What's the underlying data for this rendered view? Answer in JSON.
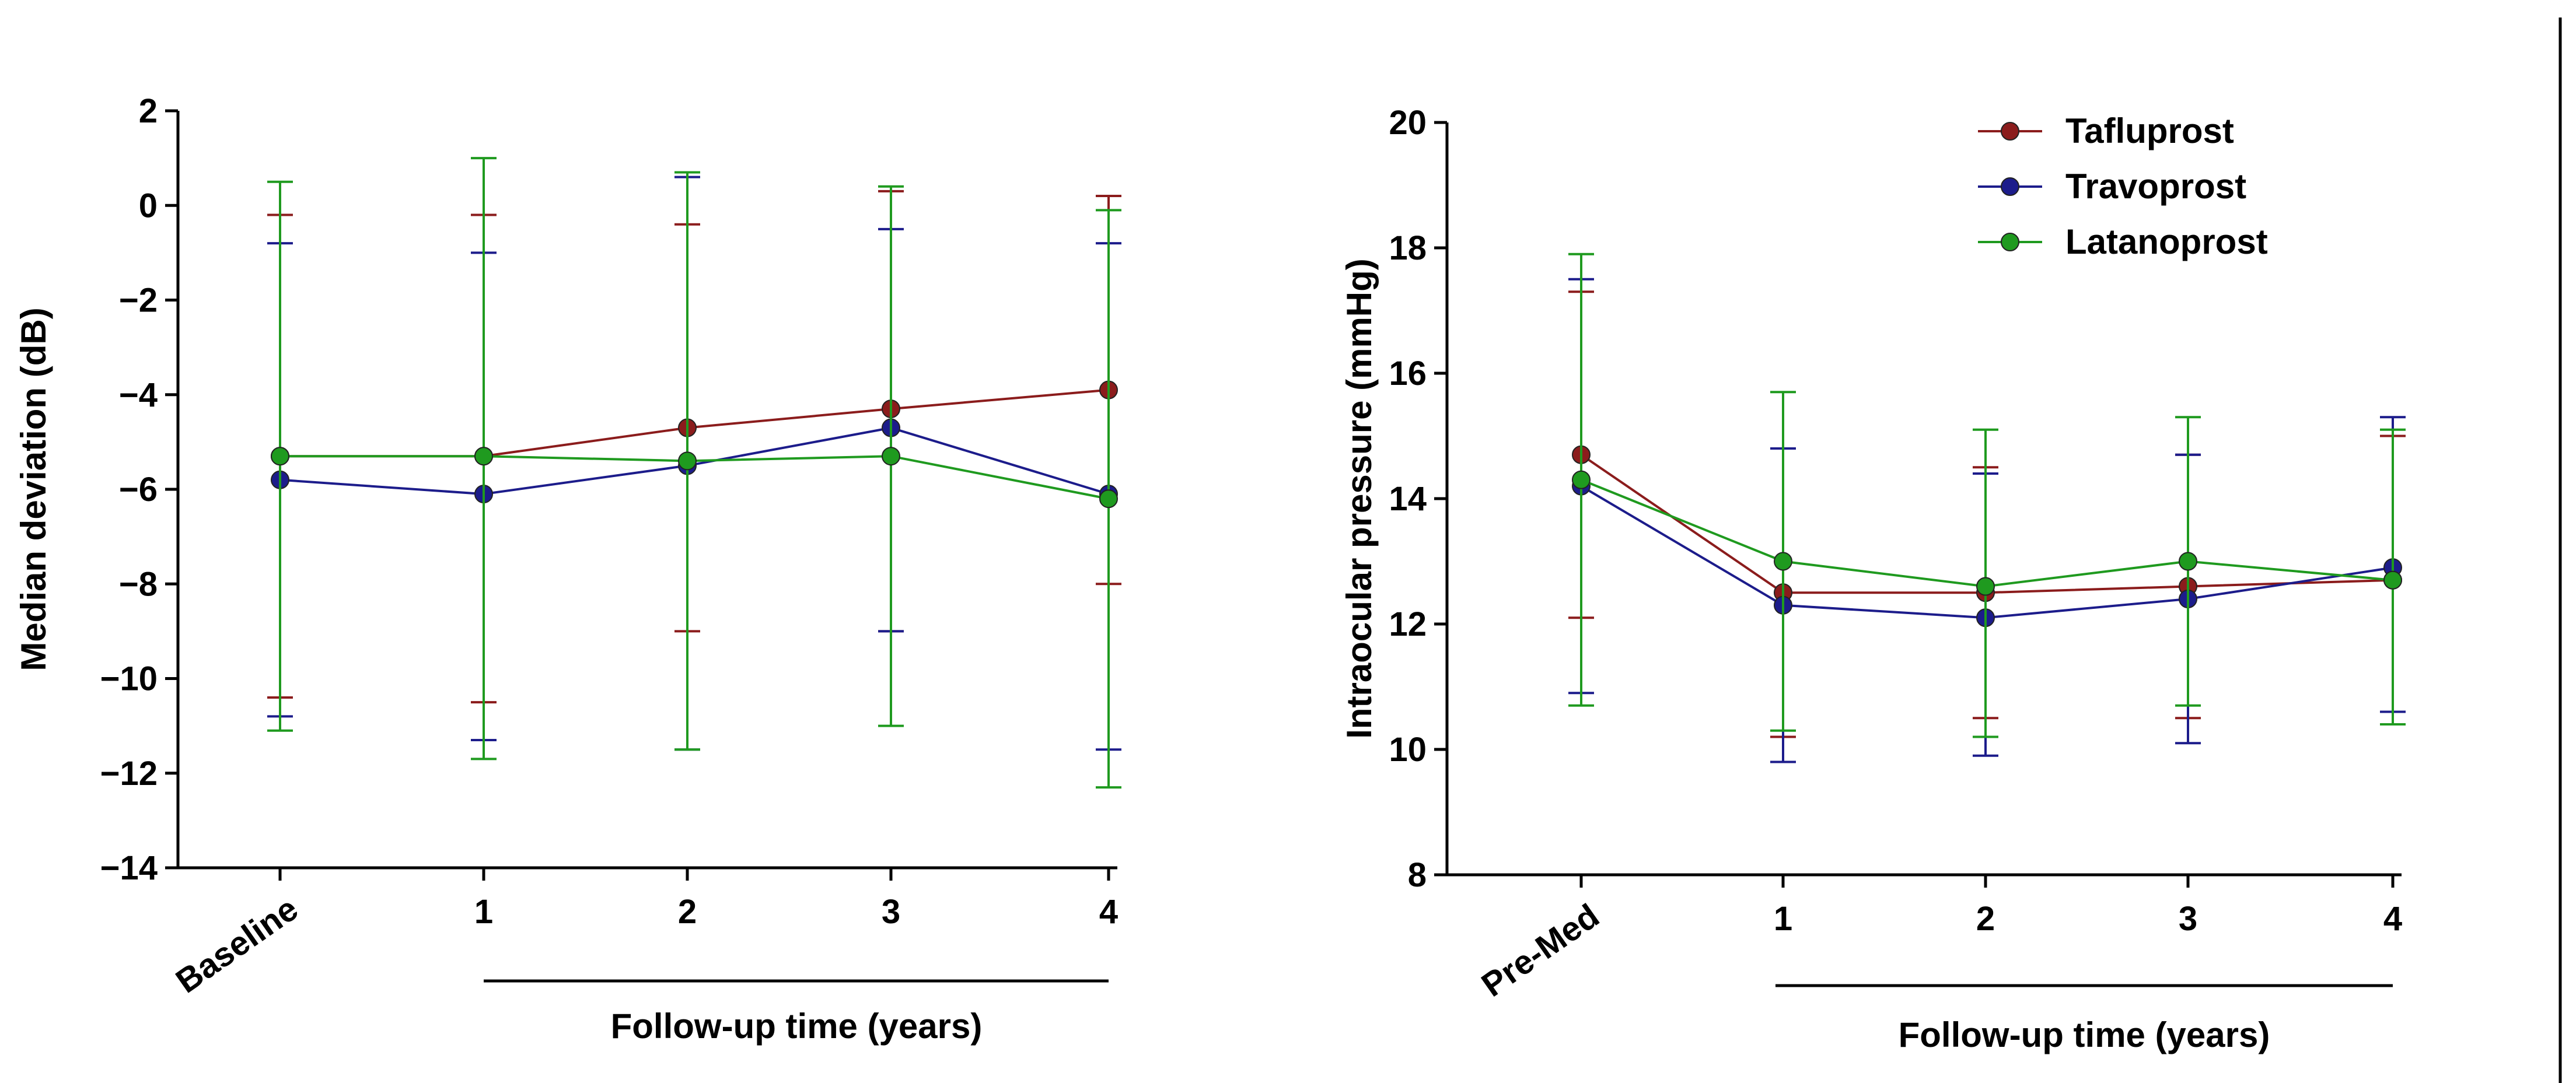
{
  "colors": {
    "Tafluprost": "#8b1c1c",
    "Travoprost": "#1c1c8b",
    "Latanoprost": "#1f9a1f",
    "axis": "#000000"
  },
  "chart_data": [
    {
      "type": "line",
      "ylabel": "Median deviation (dB)",
      "xlabel": "Follow-up time (years)",
      "categories": [
        "Baseline",
        "1",
        "2",
        "3",
        "4"
      ],
      "ylim": [
        -14,
        2
      ],
      "yticks": [
        2,
        0,
        -2,
        -4,
        -6,
        -8,
        -10,
        -12,
        -14
      ],
      "ytick_labels": [
        "2",
        "0",
        "−2",
        "−4",
        "−6",
        "−8",
        "−10",
        "−12",
        "−14"
      ],
      "legend": false,
      "series": [
        {
          "name": "Tafluprost",
          "values": [
            -5.3,
            -5.3,
            -4.7,
            -4.3,
            -3.9
          ],
          "err_low": [
            -10.4,
            -10.5,
            -9.0,
            -9.0,
            -8.0
          ],
          "err_high": [
            -0.2,
            -0.2,
            -0.4,
            0.3,
            0.2
          ]
        },
        {
          "name": "Travoprost",
          "values": [
            -5.8,
            -6.1,
            -5.5,
            -4.7,
            -6.1
          ],
          "err_low": [
            -10.8,
            -11.3,
            -11.5,
            -9.0,
            -11.5
          ],
          "err_high": [
            -0.8,
            -1.0,
            0.6,
            -0.5,
            -0.8
          ]
        },
        {
          "name": "Latanoprost",
          "values": [
            -5.3,
            -5.3,
            -5.4,
            -5.3,
            -6.2
          ],
          "err_low": [
            -11.1,
            -11.7,
            -11.5,
            -11.0,
            -12.3
          ],
          "err_high": [
            0.5,
            1.0,
            0.7,
            0.4,
            -0.1
          ]
        }
      ]
    },
    {
      "type": "line",
      "ylabel": "Intraocular pressure (mmHg)",
      "xlabel": "Follow-up time (years)",
      "categories": [
        "Pre-Med",
        "1",
        "2",
        "3",
        "4"
      ],
      "ylim": [
        8,
        20
      ],
      "yticks": [
        20,
        18,
        16,
        14,
        12,
        10,
        8
      ],
      "ytick_labels": [
        "20",
        "18",
        "16",
        "14",
        "12",
        "10",
        "8"
      ],
      "legend": true,
      "legend_position": "top-right",
      "series": [
        {
          "name": "Tafluprost",
          "values": [
            14.7,
            12.5,
            12.5,
            12.6,
            12.7
          ],
          "err_low": [
            12.1,
            10.2,
            10.5,
            10.5,
            10.4
          ],
          "err_high": [
            17.3,
            14.8,
            14.5,
            14.7,
            15.0
          ]
        },
        {
          "name": "Travoprost",
          "values": [
            14.2,
            12.3,
            12.1,
            12.4,
            12.9
          ],
          "err_low": [
            10.9,
            9.8,
            9.9,
            10.1,
            10.6
          ],
          "err_high": [
            17.5,
            14.8,
            14.4,
            14.7,
            15.3
          ]
        },
        {
          "name": "Latanoprost",
          "values": [
            14.3,
            13.0,
            12.6,
            13.0,
            12.7
          ],
          "err_low": [
            10.7,
            10.3,
            10.2,
            10.7,
            10.4
          ],
          "err_high": [
            17.9,
            15.7,
            15.1,
            15.3,
            15.1
          ]
        }
      ]
    }
  ]
}
